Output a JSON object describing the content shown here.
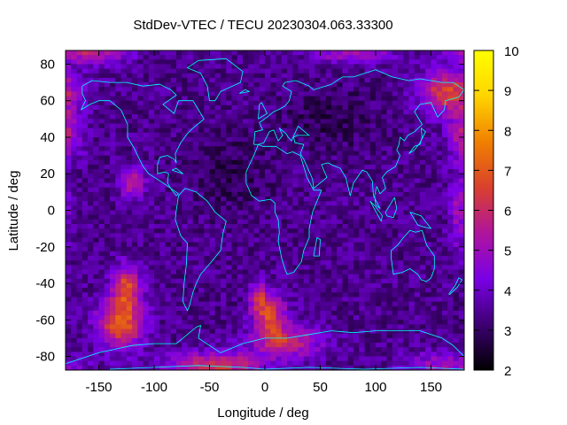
{
  "chart_data": {
    "type": "heatmap",
    "title": "StdDev-VTEC / TECU 20230304.063.33300",
    "xlabel": "Longitude / deg",
    "ylabel": "Latitude / deg",
    "xlim": [
      -180,
      180
    ],
    "ylim": [
      -87.5,
      87.5
    ],
    "xticks": [
      -150,
      -100,
      -50,
      0,
      50,
      100,
      150
    ],
    "yticks": [
      -80,
      -60,
      -40,
      -20,
      0,
      20,
      40,
      60,
      80
    ],
    "colorbar": {
      "range": [
        2,
        10
      ],
      "ticks": [
        2,
        3,
        4,
        5,
        6,
        7,
        8,
        9,
        10
      ],
      "colors": [
        "#000000",
        "#3d0072",
        "#7a00e6",
        "#b0159c",
        "#d9402d",
        "#f08000",
        "#ffd400",
        "#ffff00"
      ]
    },
    "grid": {
      "lon_step_deg": 5,
      "lat_step_deg": 2.5,
      "base_value": 3.4
    },
    "features": [
      {
        "lon": -130,
        "lat": -62,
        "value": 7.2,
        "sigma_lon": 14,
        "sigma_lat": 9
      },
      {
        "lon": -125,
        "lat": -42,
        "value": 6.6,
        "sigma_lon": 9,
        "sigma_lat": 8
      },
      {
        "lon": -45,
        "lat": -85,
        "value": 6.3,
        "sigma_lon": 30,
        "sigma_lat": 5
      },
      {
        "lon": 5,
        "lat": -58,
        "value": 6.4,
        "sigma_lon": 10,
        "sigma_lat": 8
      },
      {
        "lon": 20,
        "lat": -72,
        "value": 5.9,
        "sigma_lon": 22,
        "sigma_lat": 6
      },
      {
        "lon": -120,
        "lat": 15,
        "value": 5.6,
        "sigma_lon": 8,
        "sigma_lat": 6
      },
      {
        "lon": 165,
        "lat": 65,
        "value": 6.6,
        "sigma_lon": 18,
        "sigma_lat": 8
      },
      {
        "lon": 180,
        "lat": 42,
        "value": 5.5,
        "sigma_lon": 10,
        "sigma_lat": 10
      },
      {
        "lon": -160,
        "lat": 86,
        "value": 5.6,
        "sigma_lon": 25,
        "sigma_lat": 4
      },
      {
        "lon": 80,
        "lat": 86,
        "value": 5.2,
        "sigma_lon": 25,
        "sigma_lat": 4
      },
      {
        "lon": -5,
        "lat": -48,
        "value": 5.5,
        "sigma_lon": 6,
        "sigma_lat": 6
      },
      {
        "lon": 160,
        "lat": -85,
        "value": 5.0,
        "sigma_lon": 25,
        "sigma_lat": 5
      },
      {
        "lon": 175,
        "lat": 0,
        "value": 4.9,
        "sigma_lon": 6,
        "sigma_lat": 15
      },
      {
        "lon": -30,
        "lat": 20,
        "value": 2.8,
        "sigma_lon": 25,
        "sigma_lat": 15
      },
      {
        "lon": 60,
        "lat": 50,
        "value": 2.8,
        "sigma_lon": 30,
        "sigma_lat": 12
      }
    ]
  }
}
